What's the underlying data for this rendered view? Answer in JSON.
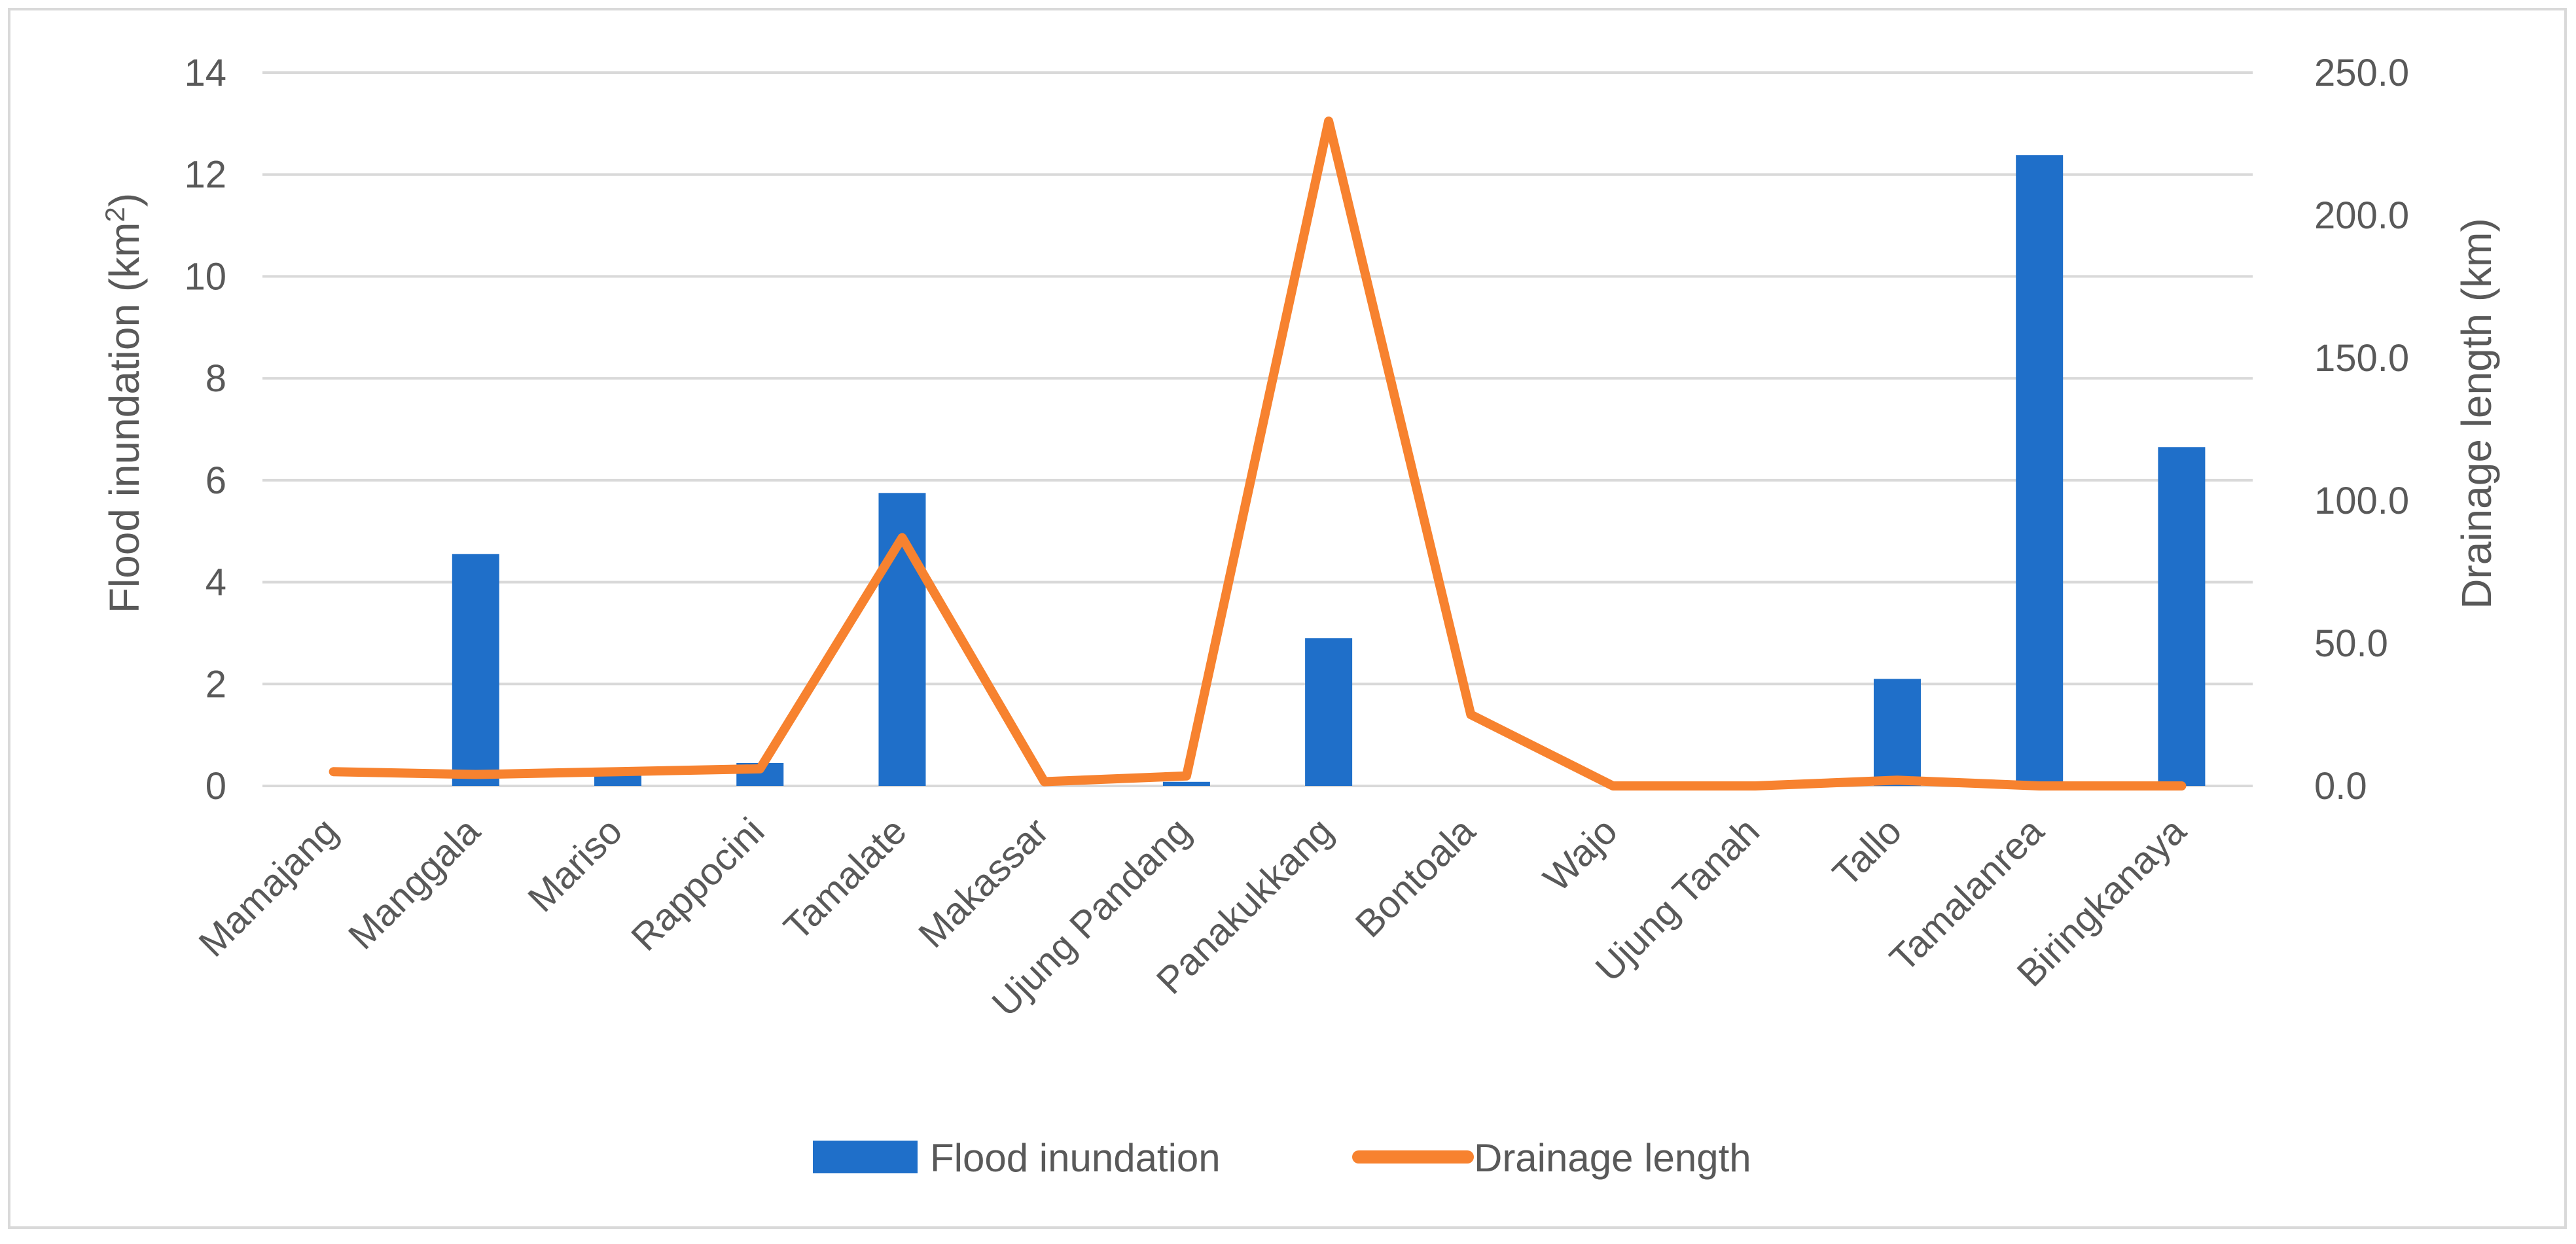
{
  "chart_data": {
    "type": "bar+line",
    "categories": [
      "Mamajang",
      "Manggala",
      "Mariso",
      "Rappocini",
      "Tamalate",
      "Makassar",
      "Ujung Pandang",
      "Panakukkang",
      "Bontoala",
      "Wajo",
      "Ujung Tanah",
      "Tallo",
      "Tamalanrea",
      "Biringkanaya"
    ],
    "series": [
      {
        "name": "Flood inundation",
        "kind": "bar",
        "axis": "left",
        "color": "#1f6fc9",
        "values": [
          0,
          4.55,
          0.3,
          0.45,
          5.75,
          0,
          0.08,
          2.9,
          0,
          0,
          0,
          2.1,
          12.38,
          6.65
        ]
      },
      {
        "name": "Drainage length",
        "kind": "line",
        "axis": "right",
        "color": "#f7822f",
        "values": [
          5.0,
          4.0,
          5.0,
          6.0,
          87.0,
          1.5,
          3.5,
          233.0,
          25.0,
          0.0,
          0.0,
          2.0,
          0.0,
          0.0
        ]
      }
    ],
    "y_left": {
      "label": "Flood inundation (km²)",
      "label_base": "Flood inundation (km",
      "label_sup": "2",
      "label_end": ")",
      "min": 0,
      "max": 14,
      "step": 2,
      "ticks": [
        "0",
        "2",
        "4",
        "6",
        "8",
        "10",
        "12",
        "14"
      ]
    },
    "y_right": {
      "label": "Drainage length (km)",
      "min": 0,
      "max": 250,
      "step": 50,
      "ticks": [
        "0.0",
        "50.0",
        "100.0",
        "150.0",
        "200.0",
        "250.0"
      ]
    },
    "legend_position": "bottom",
    "gridlines": true,
    "colors": {
      "grid": "#d9d9d9",
      "text": "#595959",
      "frame": "#d9d9d9"
    }
  }
}
